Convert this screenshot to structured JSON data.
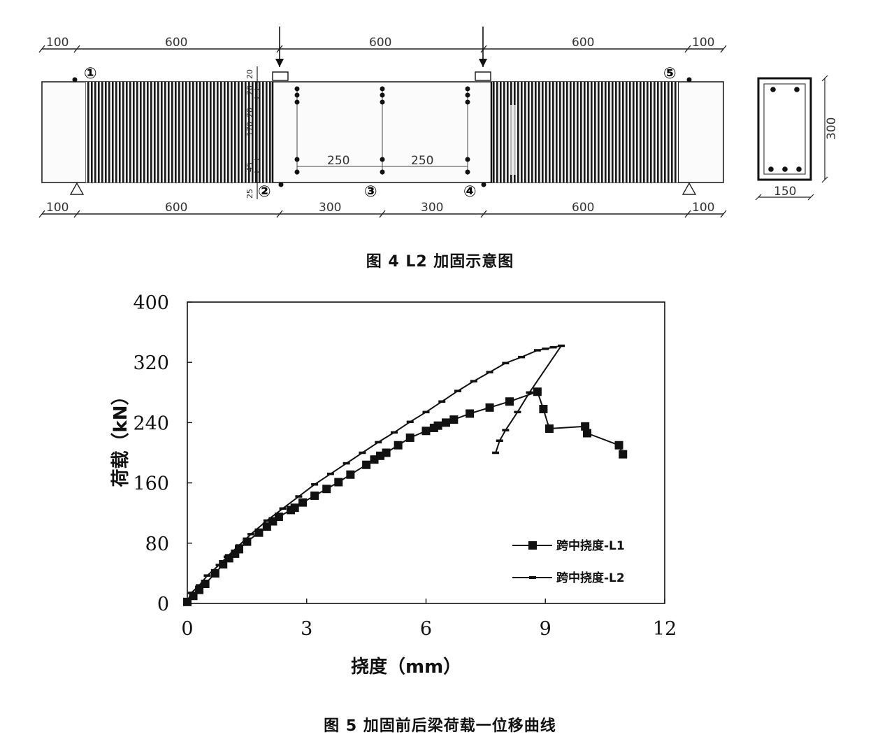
{
  "figure4": {
    "caption": "图 4 L2 加固示意图",
    "top_dims": [
      "100",
      "600",
      "600",
      "600",
      "100"
    ],
    "bottom_dims": [
      "100",
      "600",
      "300",
      "300",
      "600",
      "100"
    ],
    "inner_dims": [
      "250",
      "250"
    ],
    "vertical_dims": [
      "20",
      "20",
      "170",
      "20",
      "45",
      "25"
    ],
    "points": [
      "①",
      "②",
      "③",
      "④",
      "⑤"
    ],
    "section_height": "300",
    "section_width": "150"
  },
  "figure5": {
    "caption": "图 5 加固前后梁荷载一位移曲线"
  },
  "chart_data": {
    "type": "line",
    "xlabel": "挠度（mm）",
    "ylabel": "荷载（kN）",
    "xlim": [
      0,
      12
    ],
    "ylim": [
      0,
      400
    ],
    "xticks": [
      "0",
      "3",
      "6",
      "9",
      "12"
    ],
    "yticks": [
      "0",
      "80",
      "160",
      "240",
      "320",
      "400"
    ],
    "grid": false,
    "legend_position": "bottom-right",
    "series": [
      {
        "name": "跨中挠度-L1",
        "marker": "square",
        "x": [
          0.0,
          0.15,
          0.3,
          0.45,
          0.7,
          0.9,
          1.05,
          1.2,
          1.3,
          1.5,
          1.8,
          2.0,
          2.15,
          2.3,
          2.6,
          2.7,
          2.9,
          3.2,
          3.5,
          3.8,
          4.1,
          4.5,
          4.7,
          4.85,
          5.0,
          5.3,
          5.6,
          6.0,
          6.2,
          6.3,
          6.5,
          6.7,
          7.1,
          7.6,
          8.1,
          8.8,
          8.95,
          9.1,
          10.0,
          10.05,
          10.85,
          10.95
        ],
        "y": [
          2,
          10,
          18,
          26,
          40,
          52,
          60,
          66,
          72,
          82,
          94,
          102,
          109,
          115,
          124,
          127,
          134,
          143,
          152,
          161,
          171,
          184,
          191,
          196,
          200,
          210,
          220,
          229,
          233,
          236,
          240,
          244,
          252,
          260,
          268,
          281,
          258,
          232,
          235,
          226,
          210,
          198
        ]
      },
      {
        "name": "跨中挠度-L2",
        "marker": "dash",
        "x": [
          0.0,
          0.1,
          0.3,
          0.5,
          0.8,
          1.0,
          1.3,
          1.6,
          2.0,
          2.4,
          2.8,
          3.2,
          3.6,
          4.0,
          4.4,
          4.8,
          5.2,
          5.6,
          6.0,
          6.4,
          6.8,
          7.2,
          7.6,
          8.0,
          8.4,
          8.8,
          9.0,
          9.2,
          9.4,
          8.6,
          8.3,
          8.0,
          7.85,
          7.75
        ],
        "y": [
          3,
          14,
          24,
          37,
          51,
          62,
          77,
          92,
          110,
          126,
          142,
          158,
          172,
          186,
          200,
          214,
          227,
          241,
          254,
          268,
          282,
          295,
          307,
          319,
          327,
          336,
          338,
          340,
          342,
          280,
          254,
          230,
          216,
          200
        ]
      }
    ]
  }
}
